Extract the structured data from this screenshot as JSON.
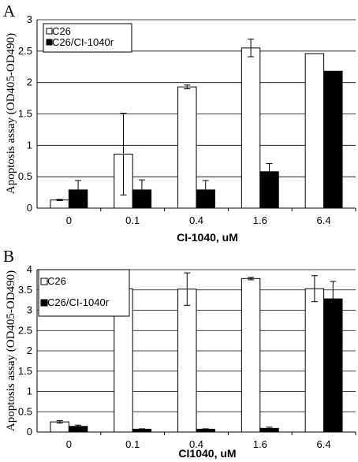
{
  "chart_data": [
    {
      "panel": "A",
      "type": "bar",
      "categories": [
        "0",
        "0.1",
        "0.4",
        "1.6",
        "6.4"
      ],
      "series": [
        {
          "name": "C26",
          "values": [
            0.13,
            0.86,
            1.93,
            2.55,
            2.46
          ],
          "errors": [
            0.01,
            0.65,
            0.03,
            0.14,
            0
          ],
          "color": "#ffffff"
        },
        {
          "name": "C26/CI-1040r",
          "values": [
            0.29,
            0.29,
            0.29,
            0.58,
            2.18
          ],
          "errors": [
            0.15,
            0.16,
            0.15,
            0.13,
            0
          ],
          "color": "#000000"
        }
      ],
      "xlabel": "CI-1040, uM",
      "ylabel": "Apoptosis assay (OD405-OD490)",
      "ylim": [
        0,
        3
      ],
      "yticks": [
        "0",
        "0.5",
        "1",
        "1.5",
        "2",
        "2.5",
        "3"
      ],
      "grid": true,
      "legend": "top-left"
    },
    {
      "panel": "B",
      "type": "bar",
      "categories": [
        "0",
        "0.1",
        "0.4",
        "1.6",
        "6.4"
      ],
      "series": [
        {
          "name": "C26",
          "values": [
            0.25,
            3.53,
            3.52,
            3.78,
            3.53
          ],
          "errors": [
            0.03,
            0.3,
            0.4,
            0.03,
            0.32
          ],
          "color": "#ffffff"
        },
        {
          "name": "C26/CI-1040r",
          "values": [
            0.14,
            0.07,
            0.07,
            0.09,
            3.28
          ],
          "errors": [
            0.03,
            0.01,
            0.01,
            0.03,
            0.43
          ],
          "color": "#000000"
        }
      ],
      "xlabel": "CI1040, uM",
      "ylabel": "Apoptosis assay (OD405-OD490)",
      "ylim": [
        0,
        4
      ],
      "yticks": [
        "0",
        "0.5",
        "1",
        "1.5",
        "2",
        "2.5",
        "3",
        "3.5",
        "4"
      ],
      "grid": true,
      "legend": "top-left"
    }
  ]
}
